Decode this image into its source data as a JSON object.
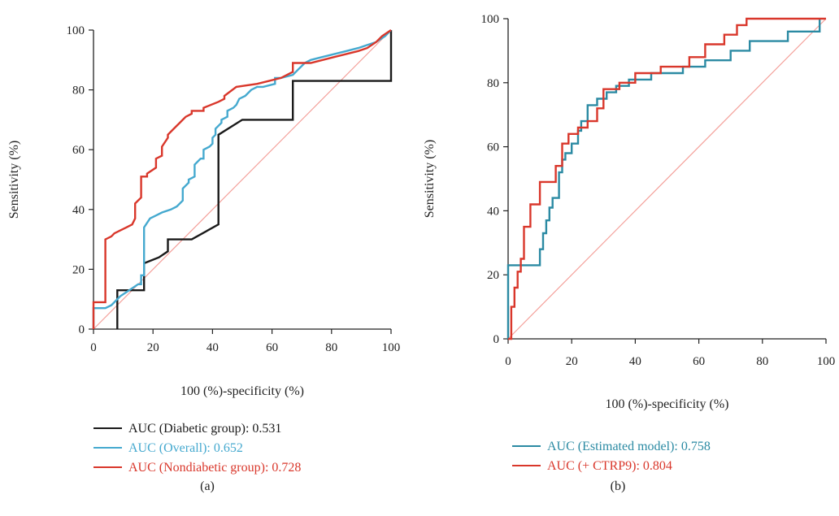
{
  "chart_data": [
    {
      "type": "line",
      "panel_label": "(a)",
      "xlabel": "100 (%)-specificity (%)",
      "ylabel": "Sensitivity (%)",
      "xlim": [
        0,
        100
      ],
      "ylim": [
        0,
        100
      ],
      "xticks": [
        "0",
        "20",
        "40",
        "60",
        "80",
        "100"
      ],
      "yticks": [
        "0",
        "20",
        "40",
        "60",
        "80",
        "100"
      ],
      "reference_line": {
        "x": [
          0,
          100
        ],
        "y": [
          0,
          100
        ],
        "color": "#f4a09a"
      },
      "series": [
        {
          "name": "AUC (Diabetic group): 0.531",
          "color": "#1a1a1a",
          "x": [
            8,
            8,
            8,
            17,
            17,
            22,
            25,
            25,
            33,
            42,
            42,
            50,
            67,
            67,
            100,
            100
          ],
          "y": [
            0,
            0,
            13,
            13,
            22,
            24,
            26,
            30,
            30,
            35,
            65,
            70,
            70,
            83,
            83,
            100
          ]
        },
        {
          "name": "AUC (Overall): 0.652",
          "color": "#45a9cf",
          "x": [
            0,
            0,
            2,
            4,
            6,
            9,
            12,
            15,
            16,
            16,
            17,
            17,
            19,
            21,
            23,
            26,
            28,
            30,
            30,
            32,
            32,
            34,
            34,
            36,
            37,
            37,
            39,
            40,
            40,
            41,
            41,
            42,
            43,
            43,
            45,
            45,
            47,
            48,
            49,
            51,
            53,
            55,
            57,
            61,
            61,
            63,
            67,
            69,
            71,
            73,
            77,
            81,
            85,
            89,
            92,
            95,
            98,
            100
          ],
          "y": [
            0,
            7,
            7,
            7,
            8,
            11,
            13,
            15,
            15,
            18,
            18,
            34,
            37,
            38,
            39,
            40,
            41,
            43,
            47,
            49,
            50,
            51,
            55,
            57,
            57,
            60,
            61,
            62,
            64,
            65,
            67,
            68,
            69,
            70,
            71,
            73,
            74,
            75,
            77,
            78,
            80,
            81,
            81,
            82,
            84,
            84,
            85,
            87,
            89,
            90,
            91,
            92,
            93,
            94,
            95,
            96,
            98,
            100
          ]
        },
        {
          "name": "AUC (Nondiabetic group): 0.728",
          "color": "#d9372b",
          "x": [
            0,
            0,
            4,
            4,
            6,
            7,
            9,
            11,
            13,
            14,
            14,
            16,
            16,
            18,
            18,
            21,
            21,
            23,
            23,
            25,
            25,
            27,
            29,
            30,
            31,
            33,
            33,
            37,
            37,
            42,
            44,
            44,
            48,
            55,
            59,
            63,
            67,
            67,
            73,
            77,
            81,
            85,
            89,
            92,
            95,
            97,
            100
          ],
          "y": [
            0,
            9,
            9,
            30,
            31,
            32,
            33,
            34,
            35,
            37,
            42,
            44,
            51,
            51,
            52,
            54,
            57,
            58,
            61,
            64,
            65,
            67,
            69,
            70,
            71,
            72,
            73,
            73,
            74,
            76,
            77,
            78,
            81,
            82,
            83,
            84,
            86,
            89,
            89,
            90,
            91,
            92,
            93,
            94,
            96,
            98,
            100
          ]
        }
      ]
    },
    {
      "type": "line",
      "panel_label": "(b)",
      "xlabel": "100 (%)-specificity (%)",
      "ylabel": "Sensitivity (%)",
      "xlim": [
        0,
        100
      ],
      "ylim": [
        0,
        100
      ],
      "xticks": [
        "0",
        "20",
        "40",
        "60",
        "80",
        "100"
      ],
      "yticks": [
        "0",
        "20",
        "40",
        "60",
        "80",
        "100"
      ],
      "reference_line": {
        "x": [
          0,
          100
        ],
        "y": [
          0,
          100
        ],
        "color": "#f4a09a"
      },
      "series": [
        {
          "name": "AUC (Estimated model): 0.758",
          "color": "#2b8aa3",
          "x": [
            0,
            0,
            10,
            10,
            11,
            11,
            12,
            12,
            13,
            13,
            14,
            14,
            16,
            16,
            17,
            17,
            18,
            18,
            20,
            20,
            22,
            22,
            23,
            23,
            25,
            25,
            28,
            28,
            31,
            31,
            34,
            34,
            38,
            38,
            45,
            45,
            55,
            55,
            62,
            62,
            70,
            70,
            76,
            76,
            88,
            88,
            98,
            98
          ],
          "y": [
            0,
            23,
            23,
            28,
            28,
            33,
            33,
            37,
            37,
            41,
            41,
            44,
            44,
            52,
            52,
            56,
            56,
            58,
            58,
            61,
            61,
            65,
            65,
            68,
            68,
            73,
            73,
            75,
            75,
            77,
            77,
            79,
            79,
            81,
            81,
            83,
            83,
            85,
            85,
            87,
            87,
            90,
            90,
            93,
            93,
            96,
            96,
            100
          ]
        },
        {
          "name": "AUC (+ CTRP9): 0.804",
          "color": "#d9372b",
          "x": [
            0,
            1,
            1,
            2,
            2,
            3,
            3,
            4,
            4,
            5,
            5,
            7,
            7,
            10,
            10,
            15,
            15,
            17,
            17,
            19,
            19,
            22,
            22,
            25,
            25,
            28,
            28,
            30,
            30,
            35,
            35,
            40,
            40,
            48,
            48,
            57,
            57,
            62,
            62,
            68,
            68,
            72,
            72,
            75,
            75,
            100
          ],
          "y": [
            0,
            0,
            10,
            10,
            16,
            16,
            21,
            21,
            25,
            25,
            35,
            35,
            42,
            42,
            49,
            49,
            54,
            54,
            61,
            61,
            64,
            64,
            66,
            66,
            68,
            68,
            72,
            72,
            78,
            78,
            80,
            80,
            83,
            83,
            85,
            85,
            88,
            88,
            92,
            92,
            95,
            95,
            98,
            98,
            100,
            100
          ]
        }
      ]
    }
  ]
}
